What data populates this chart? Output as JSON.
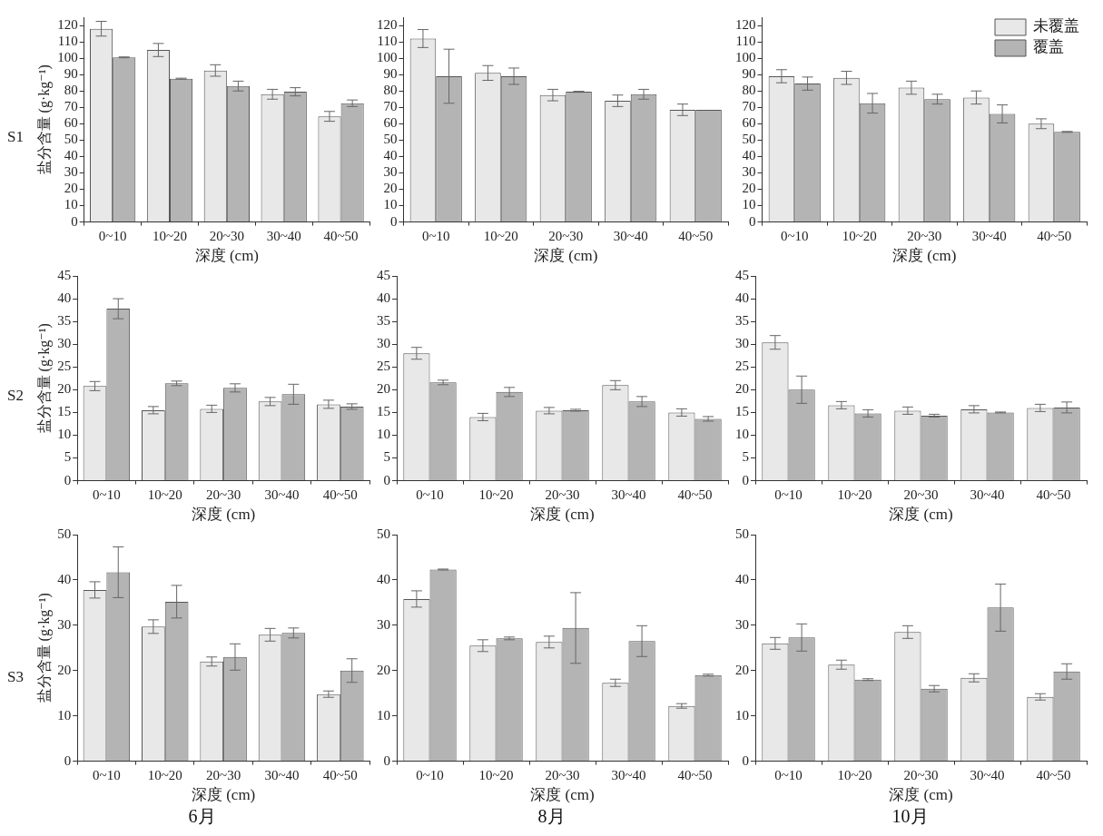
{
  "chart_data": [
    {
      "type": "bar",
      "categories": [
        "0~10",
        "10~20",
        "20~30",
        "30~40",
        "40~50"
      ],
      "xlabel": "深度 (cm)",
      "ylabel": "盐分含量 (g·kg⁻¹)",
      "annotations": [
        "S1"
      ],
      "ylim": [
        0,
        125
      ],
      "yticks": [
        0,
        10,
        20,
        30,
        40,
        50,
        60,
        70,
        80,
        90,
        100,
        110,
        120
      ],
      "series": [
        {
          "color": "#e8e8e8",
          "values": [
            118,
            105,
            92.5,
            78,
            64.5
          ],
          "errors": [
            4.5,
            4,
            3.5,
            3,
            3
          ]
        },
        {
          "color": "#b4b4b4",
          "values": [
            100.5,
            87.5,
            83,
            79.5,
            72.5
          ],
          "errors": [
            0.3,
            0.3,
            3,
            2.5,
            2
          ]
        }
      ]
    },
    {
      "type": "bar",
      "categories": [
        "0~10",
        "10~20",
        "20~30",
        "30~40",
        "40~50"
      ],
      "xlabel": "深度 (cm)",
      "ylim": [
        0,
        125
      ],
      "yticks": [
        0,
        10,
        20,
        30,
        40,
        50,
        60,
        70,
        80,
        90,
        100,
        110,
        120
      ],
      "series": [
        {
          "color": "#e8e8e8",
          "values": [
            112,
            91,
            77.5,
            74,
            68.5
          ],
          "errors": [
            5.5,
            4.5,
            3.5,
            3.5,
            3.5
          ]
        },
        {
          "color": "#b4b4b4",
          "values": [
            89,
            89,
            79.5,
            78,
            68.5
          ],
          "errors": [
            16.5,
            5,
            0.3,
            3,
            null
          ]
        }
      ]
    },
    {
      "type": "bar",
      "categories": [
        "0~10",
        "10~20",
        "20~30",
        "30~40",
        "40~50"
      ],
      "xlabel": "深度 (cm)",
      "legend": "top right",
      "ylim": [
        0,
        125
      ],
      "yticks": [
        0,
        10,
        20,
        30,
        40,
        50,
        60,
        70,
        80,
        90,
        100,
        110,
        120
      ],
      "series": [
        {
          "name": "未覆盖",
          "color": "#e8e8e8",
          "values": [
            89,
            88,
            82,
            76,
            60
          ],
          "errors": [
            4,
            4,
            4,
            4,
            3
          ]
        },
        {
          "name": "覆盖",
          "color": "#b4b4b4",
          "values": [
            84.5,
            72.5,
            75,
            66,
            55
          ],
          "errors": [
            4,
            6,
            3,
            5.5,
            0.3
          ]
        }
      ]
    },
    {
      "type": "bar",
      "categories": [
        "0~10",
        "10~20",
        "20~30",
        "30~40",
        "40~50"
      ],
      "xlabel": "深度 (cm)",
      "ylabel": "盐分含量 (g·kg⁻¹)",
      "annotations": [
        "S2"
      ],
      "ylim": [
        0,
        45
      ],
      "yticks": [
        0,
        5,
        10,
        15,
        20,
        25,
        30,
        35,
        40,
        45
      ],
      "series": [
        {
          "color": "#e8e8e8",
          "values": [
            20.8,
            15.5,
            15.8,
            17.4,
            16.8
          ],
          "errors": [
            1,
            0.8,
            0.8,
            0.9,
            0.9
          ]
        },
        {
          "color": "#b4b4b4",
          "values": [
            37.8,
            21.4,
            20.4,
            19,
            16.3
          ],
          "errors": [
            2.2,
            0.5,
            0.9,
            2.2,
            0.6
          ]
        }
      ]
    },
    {
      "type": "bar",
      "categories": [
        "0~10",
        "10~20",
        "20~30",
        "30~40",
        "40~50"
      ],
      "xlabel": "深度 (cm)",
      "ylim": [
        0,
        45
      ],
      "yticks": [
        0,
        5,
        10,
        15,
        20,
        25,
        30,
        35,
        40,
        45
      ],
      "series": [
        {
          "color": "#e8e8e8",
          "values": [
            28,
            14,
            15.4,
            21,
            15
          ],
          "errors": [
            1.3,
            0.8,
            0.7,
            1,
            0.8
          ]
        },
        {
          "color": "#b4b4b4",
          "values": [
            21.6,
            19.5,
            15.5,
            17.4,
            13.6
          ],
          "errors": [
            0.5,
            1,
            0.2,
            1.1,
            0.5
          ]
        }
      ]
    },
    {
      "type": "bar",
      "categories": [
        "0~10",
        "10~20",
        "20~30",
        "30~40",
        "40~50"
      ],
      "xlabel": "深度 (cm)",
      "ylim": [
        0,
        45
      ],
      "yticks": [
        0,
        5,
        10,
        15,
        20,
        25,
        30,
        35,
        40,
        45
      ],
      "series": [
        {
          "color": "#e8e8e8",
          "values": [
            30.4,
            16.6,
            15.4,
            15.7,
            16
          ],
          "errors": [
            1.5,
            0.8,
            0.8,
            0.8,
            0.8
          ]
        },
        {
          "color": "#b4b4b4",
          "values": [
            20,
            14.8,
            14.3,
            15,
            16.1
          ],
          "errors": [
            3,
            0.8,
            0.3,
            0.1,
            1.2
          ]
        }
      ]
    },
    {
      "type": "bar",
      "categories": [
        "0~10",
        "10~20",
        "20~30",
        "30~40",
        "40~50"
      ],
      "xlabel": "深度 (cm)",
      "ylabel": "盐分含量 (g·kg⁻¹)",
      "annotations": [
        "S3"
      ],
      "title": "6月",
      "ylim": [
        0,
        50
      ],
      "yticks": [
        0,
        10,
        20,
        30,
        40,
        50
      ],
      "series": [
        {
          "color": "#e8e8e8",
          "values": [
            37.8,
            29.7,
            22,
            27.9,
            14.8
          ],
          "errors": [
            1.8,
            1.5,
            1,
            1.4,
            0.7
          ]
        },
        {
          "color": "#b4b4b4",
          "values": [
            41.7,
            35.2,
            23,
            28.3,
            20
          ],
          "errors": [
            5.6,
            3.6,
            2.9,
            1.1,
            2.6
          ]
        }
      ]
    },
    {
      "type": "bar",
      "categories": [
        "0~10",
        "10~20",
        "20~30",
        "30~40",
        "40~50"
      ],
      "xlabel": "深度 (cm)",
      "title": "8月",
      "ylim": [
        0,
        50
      ],
      "yticks": [
        0,
        10,
        20,
        30,
        40,
        50
      ],
      "series": [
        {
          "color": "#e8e8e8",
          "values": [
            35.8,
            25.5,
            26.3,
            17.3,
            12.2
          ],
          "errors": [
            1.8,
            1.3,
            1.3,
            0.8,
            0.5
          ]
        },
        {
          "color": "#b4b4b4",
          "values": [
            42.3,
            27.1,
            29.4,
            26.5,
            19
          ],
          "errors": [
            0.1,
            0.3,
            7.8,
            3.4,
            0.2
          ]
        }
      ]
    },
    {
      "type": "bar",
      "categories": [
        "0~10",
        "10~20",
        "20~30",
        "30~40",
        "40~50"
      ],
      "xlabel": "深度 (cm)",
      "title": "10月",
      "ylim": [
        0,
        50
      ],
      "yticks": [
        0,
        10,
        20,
        30,
        40,
        50
      ],
      "series": [
        {
          "color": "#e8e8e8",
          "values": [
            26,
            21.3,
            28.5,
            18.4,
            14.2
          ],
          "errors": [
            1.3,
            1,
            1.4,
            0.9,
            0.7
          ]
        },
        {
          "color": "#b4b4b4",
          "values": [
            27.3,
            18,
            16,
            33.9,
            19.8
          ],
          "errors": [
            3,
            0.2,
            0.7,
            5.2,
            1.7
          ]
        }
      ]
    }
  ]
}
